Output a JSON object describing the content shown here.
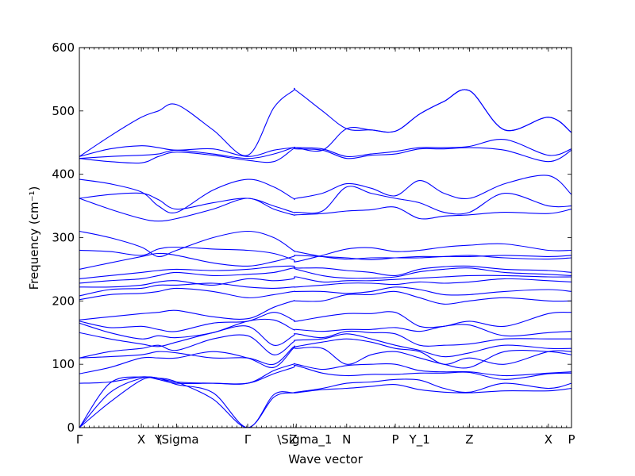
{
  "chart_data": {
    "type": "line",
    "xlabel": "Wave vector",
    "ylabel": "Frequency (cm⁻¹)",
    "ylim": [
      0,
      600
    ],
    "xlim": [
      0,
      8.1
    ],
    "grid": false,
    "color": "#0000ff",
    "yticks": [
      0,
      100,
      200,
      300,
      400,
      500,
      600
    ],
    "xticks": [
      {
        "label": "Γ",
        "x": 0.0
      },
      {
        "label": "X",
        "x": 1.02
      },
      {
        "label": "Y",
        "x": 1.3
      },
      {
        "label": "\\Sigma",
        "x": 1.6
      },
      {
        "label": "Γ",
        "x": 2.77
      },
      {
        "label": "Z",
        "x": 3.52
      },
      {
        "label": "\\Sigma_1",
        "x": 3.57
      },
      {
        "label": "N",
        "x": 4.4
      },
      {
        "label": "P",
        "x": 5.2
      },
      {
        "label": "Y_1",
        "x": 5.6
      },
      {
        "label": "Z",
        "x": 6.42
      },
      {
        "label": "X",
        "x": 7.72
      },
      {
        "label": "P",
        "x": 8.1
      }
    ],
    "x": [
      0.0,
      0.5,
      1.02,
      1.3,
      1.6,
      2.2,
      2.77,
      3.2,
      3.52,
      3.57,
      4.0,
      4.4,
      4.8,
      5.2,
      5.6,
      6.0,
      6.42,
      7.0,
      7.72,
      8.1
    ],
    "series": [
      {
        "values": [
          0,
          40,
          75,
          78,
          72,
          45,
          0,
          48,
          55,
          55,
          60,
          62,
          65,
          68,
          60,
          56,
          55,
          58,
          58,
          62
        ]
      },
      {
        "values": [
          0,
          55,
          78,
          78,
          68,
          55,
          0,
          52,
          55,
          56,
          62,
          70,
          72,
          76,
          75,
          62,
          56,
          70,
          62,
          70
        ]
      },
      {
        "values": [
          0,
          70,
          80,
          76,
          70,
          70,
          70,
          85,
          95,
          98,
          86,
          82,
          84,
          84,
          86,
          86,
          87,
          76,
          85,
          86
        ]
      },
      {
        "values": [
          70,
          72,
          80,
          78,
          72,
          70,
          70,
          90,
          100,
          100,
          92,
          98,
          100,
          100,
          90,
          88,
          88,
          82,
          86,
          88
        ]
      },
      {
        "values": [
          85,
          95,
          110,
          110,
          110,
          120,
          110,
          95,
          125,
          125,
          125,
          100,
          115,
          120,
          110,
          100,
          95,
          120,
          120,
          115
        ]
      },
      {
        "values": [
          110,
          112,
          115,
          120,
          118,
          110,
          110,
          100,
          127,
          128,
          135,
          140,
          135,
          125,
          120,
          100,
          110,
          100,
          120,
          120
        ]
      },
      {
        "values": [
          110,
          120,
          125,
          130,
          122,
          140,
          145,
          115,
          135,
          138,
          140,
          148,
          140,
          130,
          122,
          112,
          118,
          130,
          125,
          125
        ]
      },
      {
        "values": [
          150,
          140,
          132,
          128,
          135,
          150,
          160,
          130,
          145,
          148,
          142,
          152,
          150,
          148,
          130,
          130,
          132,
          140,
          140,
          140
        ]
      },
      {
        "values": [
          165,
          150,
          140,
          145,
          142,
          150,
          168,
          170,
          155,
          155,
          152,
          155,
          155,
          158,
          152,
          160,
          162,
          145,
          150,
          152
        ]
      },
      {
        "values": [
          168,
          158,
          160,
          155,
          152,
          165,
          168,
          182,
          170,
          168,
          175,
          180,
          180,
          182,
          160,
          160,
          168,
          160,
          180,
          182
        ]
      },
      {
        "values": [
          170,
          175,
          180,
          182,
          185,
          175,
          172,
          190,
          200,
          200,
          200,
          210,
          210,
          215,
          205,
          195,
          200,
          205,
          200,
          200
        ]
      },
      {
        "values": [
          202,
          210,
          212,
          215,
          220,
          215,
          205,
          210,
          215,
          215,
          215,
          212,
          215,
          222,
          218,
          210,
          210,
          215,
          218,
          215
        ]
      },
      {
        "values": [
          208,
          218,
          220,
          225,
          225,
          228,
          222,
          220,
          222,
          222,
          225,
          228,
          228,
          226,
          230,
          228,
          230,
          235,
          232,
          230
        ]
      },
      {
        "values": [
          222,
          222,
          225,
          230,
          232,
          225,
          235,
          232,
          235,
          238,
          230,
          232,
          232,
          234,
          236,
          238,
          240,
          240,
          238,
          238
        ]
      },
      {
        "values": [
          228,
          232,
          235,
          240,
          245,
          240,
          242,
          245,
          252,
          250,
          240,
          236,
          236,
          238,
          246,
          250,
          252,
          245,
          242,
          240
        ]
      },
      {
        "values": [
          235,
          240,
          245,
          248,
          250,
          248,
          250,
          254,
          255,
          252,
          252,
          248,
          245,
          240,
          250,
          254,
          255,
          250,
          248,
          245
        ]
      },
      {
        "values": [
          250,
          260,
          270,
          275,
          272,
          260,
          255,
          262,
          270,
          272,
          270,
          268,
          265,
          268,
          270,
          270,
          272,
          268,
          266,
          268
        ]
      },
      {
        "values": [
          280,
          278,
          272,
          282,
          285,
          282,
          280,
          275,
          265,
          262,
          272,
          282,
          284,
          278,
          280,
          285,
          288,
          290,
          280,
          280
        ]
      },
      {
        "values": [
          310,
          300,
          285,
          270,
          280,
          300,
          310,
          300,
          280,
          278,
          270,
          266,
          268,
          268,
          268,
          270,
          270,
          272,
          270,
          272
        ]
      },
      {
        "values": [
          362,
          345,
          330,
          326,
          330,
          345,
          362,
          345,
          336,
          336,
          338,
          342,
          344,
          348,
          330,
          334,
          336,
          340,
          338,
          345
        ]
      },
      {
        "values": [
          362,
          368,
          370,
          360,
          345,
          355,
          362,
          350,
          340,
          340,
          342,
          380,
          370,
          362,
          355,
          340,
          340,
          370,
          350,
          350
        ]
      },
      {
        "values": [
          392,
          385,
          372,
          350,
          340,
          375,
          392,
          380,
          362,
          362,
          370,
          385,
          378,
          366,
          390,
          370,
          362,
          385,
          398,
          368
        ]
      },
      {
        "values": [
          425,
          420,
          418,
          428,
          435,
          430,
          422,
          420,
          440,
          440,
          438,
          425,
          430,
          432,
          440,
          440,
          442,
          438,
          420,
          438
        ]
      },
      {
        "values": [
          425,
          428,
          430,
          432,
          438,
          432,
          425,
          432,
          442,
          442,
          440,
          428,
          432,
          436,
          442,
          442,
          444,
          455,
          430,
          440
        ]
      },
      {
        "values": [
          428,
          440,
          445,
          442,
          438,
          440,
          428,
          438,
          442,
          442,
          438,
          472,
          470,
          468,
          495,
          515,
          532,
          470,
          490,
          466
        ]
      },
      {
        "values": [
          428,
          460,
          490,
          500,
          510,
          470,
          430,
          505,
          532,
          532,
          500,
          472,
          470,
          468,
          495,
          515,
          532,
          470,
          490,
          466
        ]
      }
    ]
  }
}
